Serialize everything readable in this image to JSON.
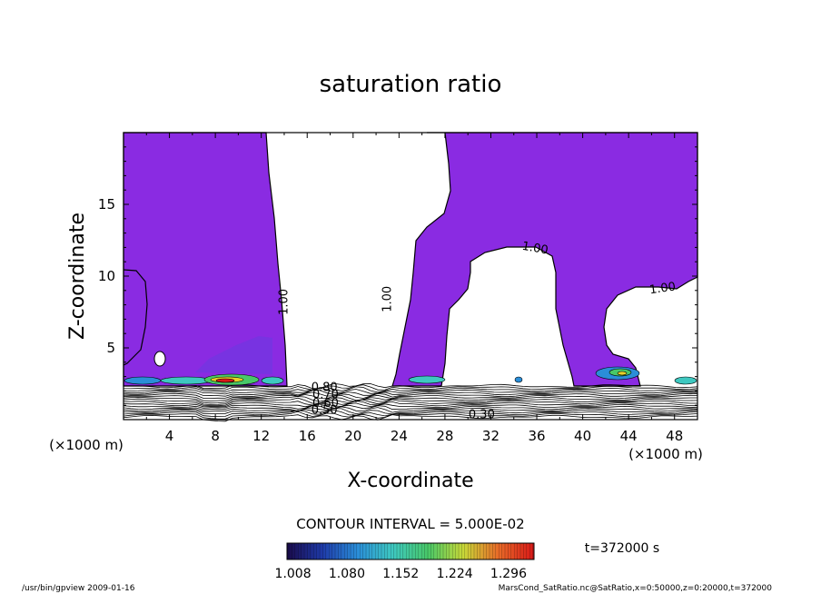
{
  "chart_data": {
    "type": "contour",
    "title": "saturation ratio",
    "xlabel": "X-coordinate",
    "ylabel": "Z-coordinate",
    "x_unit_note": "(×1000 m)",
    "xlim": [
      0,
      50
    ],
    "ylim": [
      0,
      20
    ],
    "x_ticks": [
      4,
      8,
      12,
      16,
      20,
      24,
      28,
      32,
      36,
      40,
      44,
      48
    ],
    "y_ticks": [
      5,
      10,
      15
    ],
    "fill_color": "#8a2be2",
    "contour_labels": [
      {
        "text": "1.00",
        "x": 14.3,
        "z": 8.2,
        "rotation": -90
      },
      {
        "text": "1.00",
        "x": 23.3,
        "z": 8.4,
        "rotation": -90
      },
      {
        "text": "1.00",
        "x": 35.8,
        "z": 11.7,
        "rotation": 10
      },
      {
        "text": "1.00",
        "x": 47.0,
        "z": 8.9,
        "rotation": -8
      },
      {
        "text": "0.80",
        "x": 17.5,
        "z": 2.0,
        "rotation": 0
      },
      {
        "text": "0.70",
        "x": 17.6,
        "z": 1.5,
        "rotation": 0
      },
      {
        "text": "0.60",
        "x": 17.6,
        "z": 0.9,
        "rotation": 0
      },
      {
        "text": "0.50",
        "x": 17.5,
        "z": 0.4,
        "rotation": 0
      },
      {
        "text": "0.30",
        "x": 31.2,
        "z": 0.1,
        "rotation": 0
      }
    ],
    "contour_interval_text": "CONTOUR INTERVAL = 5.000E-02",
    "colorbar": {
      "min": 1.0,
      "max": 1.33,
      "ticks": [
        "1.008",
        "1.080",
        "1.152",
        "1.224",
        "1.296"
      ],
      "stops": [
        "#1a0a4a",
        "#1e3aa8",
        "#2a8ed8",
        "#3ec8c0",
        "#48c868",
        "#c8d838",
        "#e86a28",
        "#d81818"
      ]
    },
    "time_label": "t=372000 s"
  },
  "footer": {
    "left": "/usr/bin/gpview  2009-01-16",
    "right": "MarsCond_SatRatio.nc@SatRatio,x=0:50000,z=0:20000,t=372000"
  }
}
